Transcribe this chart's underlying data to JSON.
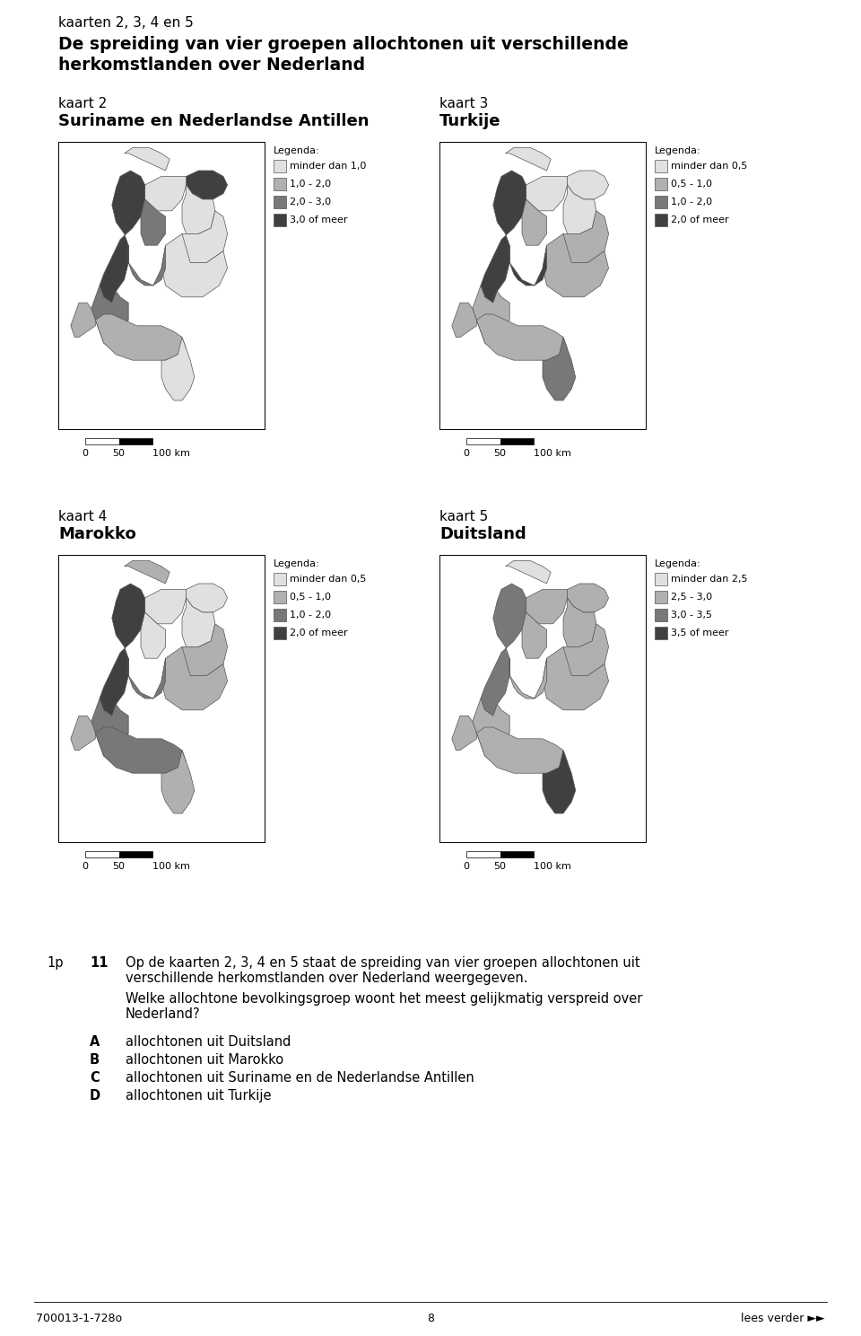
{
  "page_title_line1": "kaarten 2, 3, 4 en 5",
  "page_title_line2": "De spreiding van vier groepen allochtonen uit verschillende",
  "page_title_line3": "herkomstlanden over Nederland",
  "map2_label": "kaart 2",
  "map2_subtitle": "Suriname en Nederlandse Antillen",
  "map3_label": "kaart 3",
  "map3_subtitle": "Turkije",
  "map4_label": "kaart 4",
  "map4_subtitle": "Marokko",
  "map5_label": "kaart 5",
  "map5_subtitle": "Duitsland",
  "legend2_title": "Legenda:",
  "legend2_items": [
    "minder dan 1,0",
    "1,0 - 2,0",
    "2,0 - 3,0",
    "3,0 of meer"
  ],
  "legend2_colors": [
    "#e0e0e0",
    "#b0b0b0",
    "#787878",
    "#404040"
  ],
  "legend3_title": "Legenda:",
  "legend3_items": [
    "minder dan 0,5",
    "0,5 - 1,0",
    "1,0 - 2,0",
    "2,0 of meer"
  ],
  "legend3_colors": [
    "#e0e0e0",
    "#b0b0b0",
    "#787878",
    "#404040"
  ],
  "legend4_title": "Legenda:",
  "legend4_items": [
    "minder dan 0,5",
    "0,5 - 1,0",
    "1,0 - 2,0",
    "2,0 of meer"
  ],
  "legend4_colors": [
    "#e0e0e0",
    "#b0b0b0",
    "#787878",
    "#404040"
  ],
  "legend5_title": "Legenda:",
  "legend5_items": [
    "minder dan 2,5",
    "2,5 - 3,0",
    "3,0 - 3,5",
    "3,5 of meer"
  ],
  "legend5_colors": [
    "#e0e0e0",
    "#b0b0b0",
    "#787878",
    "#404040"
  ],
  "map2_province_colors": [
    3,
    0,
    0,
    0,
    0,
    3,
    2,
    2,
    1,
    1,
    0,
    2,
    0
  ],
  "map3_province_colors": [
    0,
    0,
    0,
    1,
    1,
    3,
    1,
    3,
    1,
    1,
    2,
    1,
    0
  ],
  "map4_province_colors": [
    0,
    0,
    0,
    1,
    1,
    3,
    2,
    2,
    1,
    2,
    1,
    0,
    1
  ],
  "map5_province_colors": [
    1,
    1,
    1,
    1,
    1,
    2,
    1,
    1,
    1,
    1,
    3,
    1,
    0
  ],
  "question_prefix": "1p",
  "question_number": "11",
  "question_text_line1": "Op de kaarten 2, 3, 4 en 5 staat de spreiding van vier groepen allochtonen uit",
  "question_text_line2": "verschillende herkomstlanden over Nederland weergegeven.",
  "question_text_line3": "Welke allochtone bevolkingsgroep woont het meest gelijkmatig verspreid over",
  "question_text_line4": "Nederland?",
  "answer_A_letter": "A",
  "answer_A_text": "allochtonen uit Duitsland",
  "answer_B_letter": "B",
  "answer_B_text": "allochtonen uit Marokko",
  "answer_C_letter": "C",
  "answer_C_text": "allochtonen uit Suriname en de Nederlandse Antillen",
  "answer_D_letter": "D",
  "answer_D_text": "allochtonen uit Turkije",
  "footer_left": "700013-1-728o",
  "footer_center": "8",
  "footer_right": "lees verder ►►"
}
